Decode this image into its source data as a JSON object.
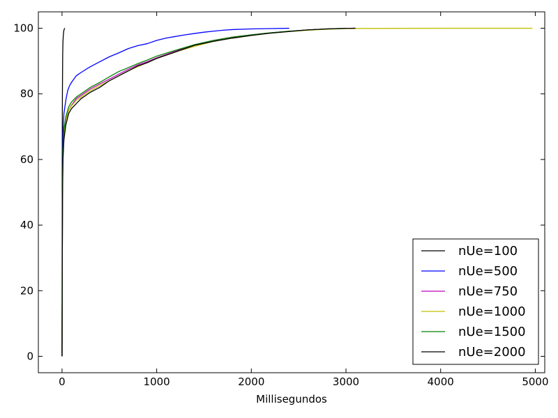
{
  "chart_data": {
    "type": "line",
    "title": "",
    "xlabel": "Millisegundos",
    "ylabel": "",
    "xlim": [
      -250,
      5100
    ],
    "ylim": [
      -5,
      105
    ],
    "xticks": [
      0,
      1000,
      2000,
      3000,
      4000,
      5000
    ],
    "yticks": [
      0,
      20,
      40,
      60,
      80,
      100
    ],
    "xtick_labels": [
      "0",
      "1000",
      "2000",
      "3000",
      "4000",
      "5000"
    ],
    "ytick_labels": [
      "0",
      "20",
      "40",
      "60",
      "80",
      "100"
    ],
    "grid": false,
    "legend_position": "lower-right",
    "series": [
      {
        "name": "nUe=100",
        "color": "#000000",
        "x": [
          0,
          2,
          4,
          7,
          10,
          14,
          19,
          25,
          30
        ],
        "y": [
          0,
          60,
          80,
          92,
          96,
          98,
          99.3,
          99.8,
          100
        ]
      },
      {
        "name": "nUe=500",
        "color": "#0000ff",
        "x": [
          0,
          5,
          10,
          20,
          40,
          60,
          80,
          100,
          150,
          200,
          300,
          400,
          500,
          600,
          700,
          800,
          900,
          1000,
          1100,
          1200,
          1300,
          1400,
          1500,
          1600,
          1700,
          1800,
          2000,
          2200,
          2400
        ],
        "y": [
          0,
          55,
          68,
          74,
          78,
          81,
          82.5,
          83.5,
          85.5,
          86.5,
          88.3,
          89.8,
          91.3,
          92.5,
          93.8,
          94.7,
          95.3,
          96.3,
          97,
          97.5,
          98,
          98.4,
          98.8,
          99.1,
          99.4,
          99.6,
          99.8,
          99.9,
          100
        ]
      },
      {
        "name": "nUe=750",
        "color": "#bf00bf",
        "x": [
          0,
          5,
          10,
          20,
          40,
          70,
          100,
          150,
          200,
          300,
          400,
          500,
          600,
          700,
          800,
          900,
          1000,
          1200,
          1400,
          1600,
          1800,
          2000,
          2200,
          2400,
          2600,
          2800,
          3000,
          3100
        ],
        "y": [
          0,
          50,
          62,
          68,
          72,
          75,
          76.5,
          78.5,
          79.5,
          81.5,
          83,
          84.5,
          86,
          87.5,
          88.8,
          89.8,
          91,
          93,
          95,
          96.3,
          97.3,
          98,
          98.6,
          99.1,
          99.5,
          99.8,
          99.95,
          100
        ]
      },
      {
        "name": "nUe=1000",
        "color": "#bfbf00",
        "x": [
          0,
          5,
          10,
          20,
          40,
          70,
          100,
          150,
          200,
          300,
          400,
          500,
          600,
          700,
          800,
          900,
          1000,
          1200,
          1400,
          1600,
          1800,
          2000,
          2200,
          2400,
          2600,
          2800,
          3000,
          3500,
          4000,
          4500,
          4970
        ],
        "y": [
          0,
          50,
          62,
          68,
          72,
          75,
          76.3,
          78,
          79,
          81,
          82.5,
          84,
          85.5,
          87,
          88.3,
          89.5,
          90.8,
          92.8,
          94.5,
          96,
          97,
          97.8,
          98.5,
          99,
          99.4,
          99.7,
          99.9,
          99.97,
          100,
          100,
          100
        ]
      },
      {
        "name": "nUe=1500",
        "color": "#008000",
        "x": [
          0,
          5,
          10,
          20,
          40,
          70,
          100,
          150,
          200,
          300,
          400,
          500,
          600,
          700,
          800,
          900,
          1000,
          1200,
          1400,
          1600,
          1800,
          2000,
          2200,
          2400,
          2600,
          2800,
          3000
        ],
        "y": [
          0,
          52,
          63,
          69,
          73,
          76,
          77.5,
          79,
          80,
          82,
          83.5,
          85.2,
          86.8,
          88,
          89.2,
          90.3,
          91.5,
          93.3,
          95,
          96.3,
          97.3,
          98,
          98.6,
          99.1,
          99.5,
          99.8,
          100
        ]
      },
      {
        "name": "nUe=2000",
        "color": "#000000",
        "x": [
          0,
          5,
          10,
          20,
          40,
          70,
          100,
          150,
          200,
          300,
          400,
          500,
          600,
          700,
          800,
          900,
          1000,
          1200,
          1400,
          1600,
          1800,
          2000,
          2200,
          2400,
          2600,
          2800,
          3000,
          3100
        ],
        "y": [
          0,
          48,
          60,
          66,
          70.5,
          74,
          75.5,
          77,
          78.5,
          80.5,
          82,
          84,
          85.5,
          87,
          88.5,
          89.5,
          90.8,
          92.8,
          94.8,
          96,
          97,
          97.8,
          98.5,
          99,
          99.5,
          99.8,
          99.95,
          100
        ]
      }
    ]
  }
}
